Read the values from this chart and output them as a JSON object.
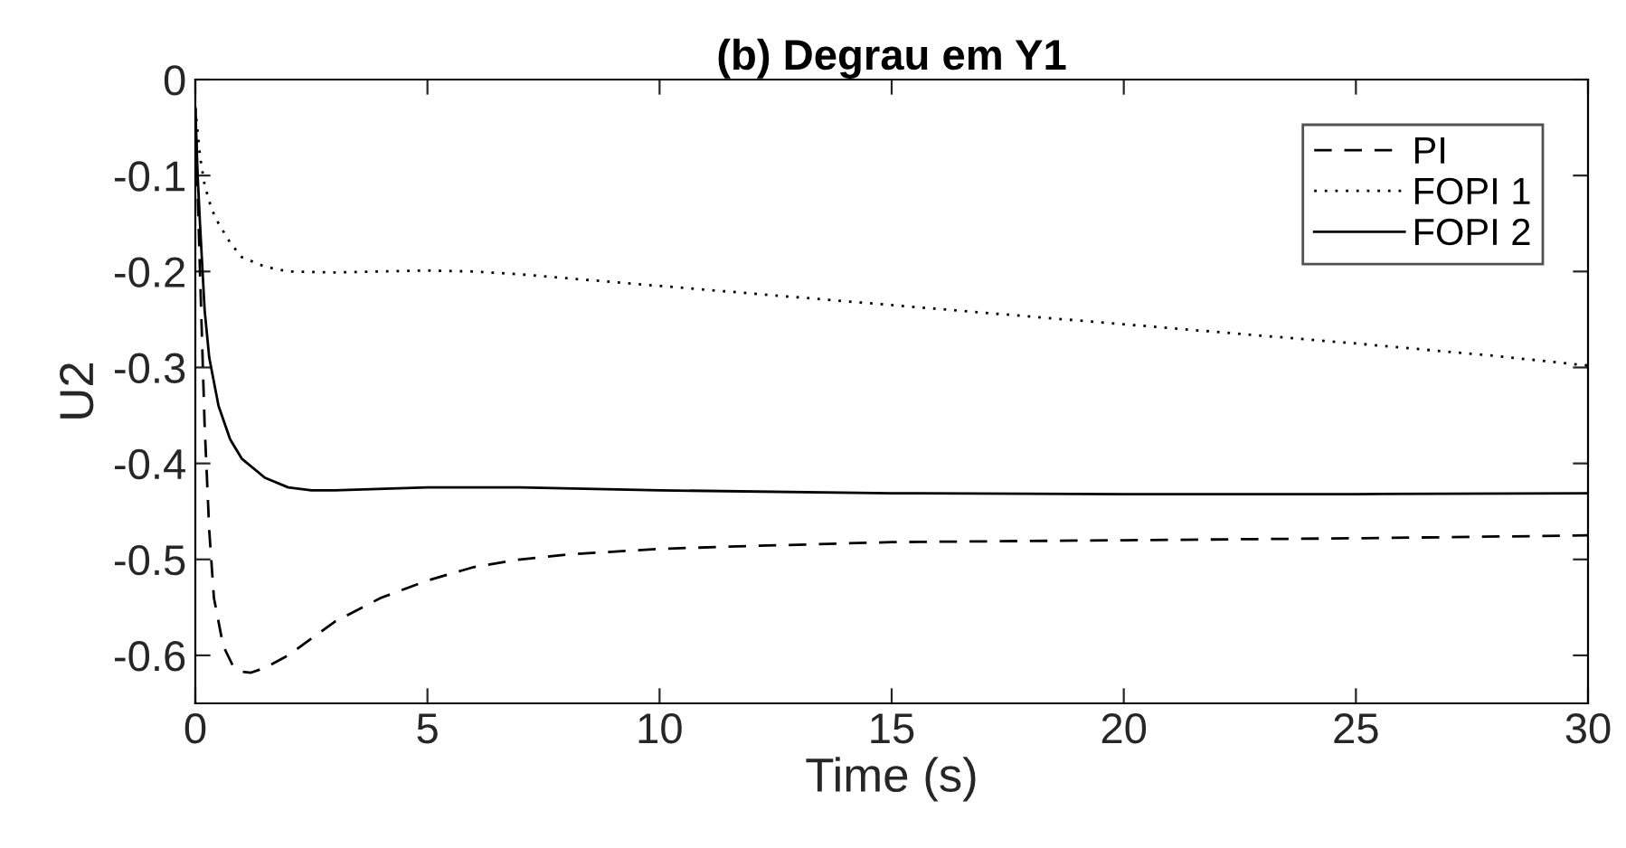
{
  "chart_data": {
    "type": "line",
    "title": "(b) Degrau em Y1",
    "xlabel": "Time (s)",
    "ylabel": "U2",
    "xlim": [
      0,
      30
    ],
    "xticks": [
      0,
      5,
      10,
      15,
      20,
      25,
      30
    ],
    "ylim": [
      -0.65,
      0
    ],
    "yticks": [
      {
        "value": -0.6,
        "label": "-0.6"
      },
      {
        "value": -0.5,
        "label": "-0.5"
      },
      {
        "value": -0.4,
        "label": "-0.4"
      },
      {
        "value": -0.3,
        "label": "-0.3"
      },
      {
        "value": -0.2,
        "label": "-0.2"
      },
      {
        "value": -0.1,
        "label": "-0.1"
      },
      0
    ],
    "grid": false,
    "legend": "top right",
    "series": [
      {
        "name": "PI",
        "color": "#000000",
        "line_style": "dashed",
        "x": [
          0,
          0.1,
          0.2,
          0.3,
          0.4,
          0.6,
          0.8,
          1.0,
          1.2,
          1.5,
          2,
          3,
          4,
          5,
          6,
          7,
          8,
          10,
          12,
          15,
          20,
          25,
          30
        ],
        "values": [
          -0.03,
          -0.2,
          -0.36,
          -0.47,
          -0.54,
          -0.59,
          -0.61,
          -0.617,
          -0.618,
          -0.613,
          -0.6,
          -0.565,
          -0.54,
          -0.522,
          -0.508,
          -0.5,
          -0.495,
          -0.489,
          -0.486,
          -0.482,
          -0.48,
          -0.478,
          -0.475
        ]
      },
      {
        "name": "FOPI 1",
        "color": "#000000",
        "line_style": "dotted",
        "x": [
          0,
          0.1,
          0.2,
          0.35,
          0.5,
          0.75,
          1,
          1.5,
          2,
          3,
          4,
          5,
          6,
          7,
          8,
          10,
          12,
          15,
          18,
          20,
          22,
          25,
          28,
          30
        ],
        "values": [
          -0.03,
          -0.08,
          -0.11,
          -0.135,
          -0.15,
          -0.17,
          -0.185,
          -0.195,
          -0.2,
          -0.201,
          -0.2,
          -0.199,
          -0.2,
          -0.203,
          -0.207,
          -0.215,
          -0.223,
          -0.235,
          -0.247,
          -0.255,
          -0.263,
          -0.275,
          -0.288,
          -0.298
        ]
      },
      {
        "name": "FOPI 2",
        "color": "#000000",
        "line_style": "solid",
        "x": [
          0,
          0.05,
          0.1,
          0.2,
          0.3,
          0.5,
          0.75,
          1,
          1.5,
          2,
          2.5,
          3,
          5,
          7,
          10,
          15,
          20,
          25,
          30
        ],
        "values": [
          -0.03,
          -0.1,
          -0.15,
          -0.24,
          -0.29,
          -0.34,
          -0.375,
          -0.395,
          -0.415,
          -0.425,
          -0.428,
          -0.428,
          -0.425,
          -0.425,
          -0.428,
          -0.431,
          -0.432,
          -0.432,
          -0.431
        ]
      }
    ]
  }
}
